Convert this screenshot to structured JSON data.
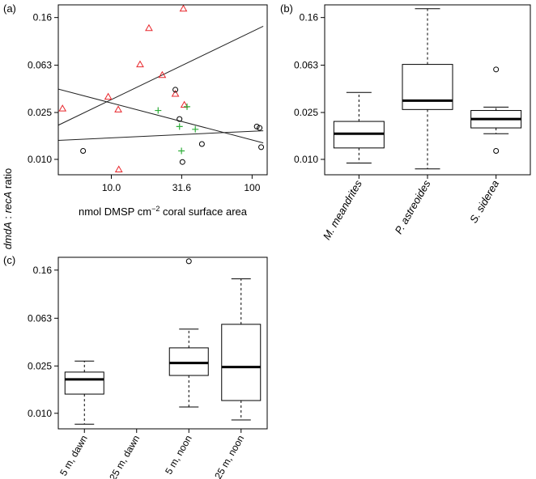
{
  "figure": {
    "shared_ylabel_italic_1": "dmdA",
    "shared_ylabel_sep": " : ",
    "shared_ylabel_italic_2": "recA",
    "shared_ylabel_suffix": " ratio"
  },
  "chart_data": [
    {
      "panel_label": "(a)",
      "type": "scatter",
      "xscale": "log",
      "yscale": "log",
      "xlabel_main": "nmol DMSP cm",
      "xlabel_sup": "−2",
      "xlabel_rest": " coral surface area",
      "xticks": [
        {
          "value": 10.0,
          "label": "10.0"
        },
        {
          "value": 31.6,
          "label": "31.6"
        },
        {
          "value": 100,
          "label": "100"
        }
      ],
      "yticks": [
        {
          "value": 0.01,
          "label": "0.010"
        },
        {
          "value": 0.025,
          "label": "0.025"
        },
        {
          "value": 0.063,
          "label": "0.063"
        },
        {
          "value": 0.16,
          "label": "0.16"
        }
      ],
      "xlim": [
        4.2,
        128
      ],
      "ylim": [
        0.0074,
        0.205
      ],
      "series": [
        {
          "marker": "triangle",
          "color": "#e8262b",
          "points": [
            [
              4.5,
              0.027
            ],
            [
              9.5,
              0.034
            ],
            [
              11.2,
              0.0265
            ],
            [
              11.3,
              0.0082
            ],
            [
              16,
              0.064
            ],
            [
              18.5,
              0.13
            ],
            [
              23,
              0.052
            ],
            [
              28.5,
              0.036
            ],
            [
              32.5,
              0.19
            ],
            [
              33,
              0.029
            ]
          ]
        },
        {
          "marker": "circle",
          "color": "#000000",
          "points": [
            [
              6.3,
              0.0118
            ],
            [
              28.5,
              0.039
            ],
            [
              30.5,
              0.022
            ],
            [
              32.0,
              0.0095
            ],
            [
              44,
              0.0135
            ],
            [
              108,
              0.019
            ],
            [
              113,
              0.0185
            ],
            [
              116,
              0.0127
            ]
          ]
        },
        {
          "marker": "plus",
          "color": "#2fae3a",
          "points": [
            [
              21.5,
              0.026
            ],
            [
              30.5,
              0.019
            ],
            [
              31.5,
              0.0118
            ],
            [
              34.5,
              0.028
            ],
            [
              39.5,
              0.018
            ]
          ]
        }
      ],
      "fit_lines": [
        {
          "x": [
            4.2,
            120
          ],
          "y": [
            0.0195,
            0.135
          ]
        },
        {
          "x": [
            4.2,
            120
          ],
          "y": [
            0.0395,
            0.0138
          ]
        },
        {
          "x": [
            4.2,
            120
          ],
          "y": [
            0.0145,
            0.0175
          ]
        }
      ]
    },
    {
      "panel_label": "(b)",
      "type": "boxplot",
      "yscale": "log",
      "categories": [
        "M. meandrites",
        "P. astreoides",
        "S. siderea"
      ],
      "yticks": [
        {
          "value": 0.01,
          "label": "0.010"
        },
        {
          "value": 0.025,
          "label": "0.025"
        },
        {
          "value": 0.063,
          "label": "0.063"
        },
        {
          "value": 0.16,
          "label": "0.16"
        }
      ],
      "ylim": [
        0.0074,
        0.205
      ],
      "boxes": [
        {
          "whisker_low": 0.0093,
          "q1": 0.0125,
          "median": 0.0165,
          "q3": 0.021,
          "whisker_high": 0.037,
          "outliers": []
        },
        {
          "whisker_low": 0.0083,
          "q1": 0.0265,
          "median": 0.0315,
          "q3": 0.064,
          "whisker_high": 0.19,
          "outliers": []
        },
        {
          "whisker_low": 0.0165,
          "q1": 0.0185,
          "median": 0.022,
          "q3": 0.026,
          "whisker_high": 0.0278,
          "outliers": [
            0.0118,
            0.058
          ]
        }
      ]
    },
    {
      "panel_label": "(c)",
      "type": "boxplot",
      "yscale": "log",
      "categories": [
        "5 m, dawn",
        "25 m, dawn",
        "5 m, noon",
        "25 m, noon"
      ],
      "yticks": [
        {
          "value": 0.01,
          "label": "0.010"
        },
        {
          "value": 0.025,
          "label": "0.025"
        },
        {
          "value": 0.063,
          "label": "0.063"
        },
        {
          "value": 0.16,
          "label": "0.16"
        }
      ],
      "ylim": [
        0.0074,
        0.205
      ],
      "boxes": [
        {
          "whisker_low": 0.0081,
          "q1": 0.0145,
          "median": 0.0193,
          "q3": 0.0222,
          "whisker_high": 0.0275,
          "outliers": []
        },
        null,
        {
          "whisker_low": 0.0113,
          "q1": 0.0208,
          "median": 0.0265,
          "q3": 0.0355,
          "whisker_high": 0.051,
          "outliers": [
            0.19
          ]
        },
        {
          "whisker_low": 0.0088,
          "q1": 0.0128,
          "median": 0.0245,
          "q3": 0.056,
          "whisker_high": 0.135,
          "outliers": []
        }
      ]
    }
  ]
}
